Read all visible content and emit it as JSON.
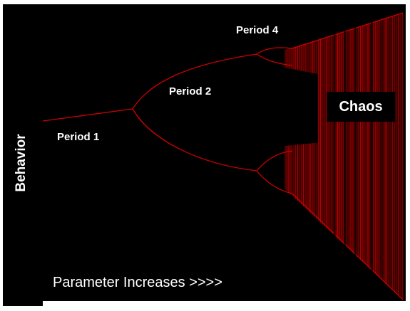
{
  "diagram": {
    "type": "bifurcation-diagram",
    "background": "#000000",
    "frame": "#ffffff",
    "curve_color": "#cc0000",
    "regions": {
      "period1": "Period 1",
      "period2": "Period 2",
      "period4": "Period 4",
      "chaos": "Chaos"
    },
    "x_axis_label": "Parameter Increases >>>>",
    "y_axis_label": "Behavior"
  }
}
